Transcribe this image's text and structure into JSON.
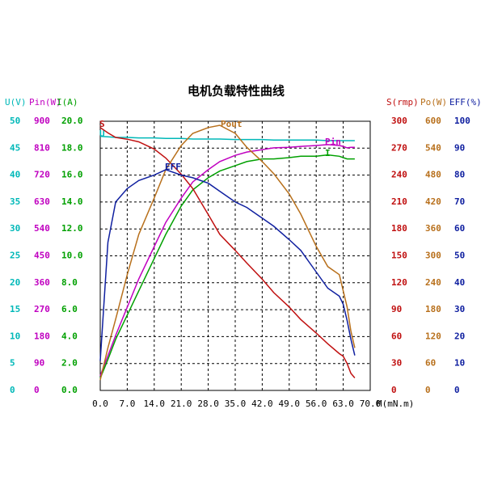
{
  "chart_data": {
    "type": "line",
    "title": "电机负载特性曲线",
    "xlabel": "M(mN.m)",
    "x": [
      0,
      2,
      4,
      7,
      10,
      14,
      17,
      21,
      24,
      28,
      31,
      35,
      38,
      42,
      45,
      49,
      52,
      56,
      59,
      62,
      63,
      64,
      65,
      66
    ],
    "xlim": [
      0,
      70
    ],
    "xticks": [
      {
        "value": 0,
        "label": "0.0"
      },
      {
        "value": 7,
        "label": "7.0"
      },
      {
        "value": 14,
        "label": "14.0"
      },
      {
        "value": 21,
        "label": "21.0"
      },
      {
        "value": 28,
        "label": "28.0"
      },
      {
        "value": 35,
        "label": "35.0"
      },
      {
        "value": 42,
        "label": "42.0"
      },
      {
        "value": 49,
        "label": "49.0"
      },
      {
        "value": 56,
        "label": "56.0"
      },
      {
        "value": 63,
        "label": "63.0"
      },
      {
        "value": 70,
        "label": "70.0"
      }
    ],
    "grid": true,
    "series": [
      {
        "name": "U",
        "axis_label": "U(V)",
        "side": "left",
        "color": "#00b8b8",
        "ylim": [
          0,
          50
        ],
        "yticks": [
          0,
          5,
          10,
          15,
          20,
          25,
          30,
          35,
          40,
          45,
          50
        ],
        "values": [
          47.2,
          47.1,
          47.0,
          47.0,
          46.9,
          46.9,
          46.8,
          46.8,
          46.7,
          46.7,
          46.7,
          46.6,
          46.6,
          46.6,
          46.5,
          46.5,
          46.5,
          46.5,
          46.4,
          46.4,
          46.4,
          46.4,
          46.4,
          46.4
        ]
      },
      {
        "name": "Pin",
        "axis_label": "Pin(W)",
        "side": "left",
        "color": "#c000c0",
        "ylim": [
          0,
          900
        ],
        "yticks": [
          0,
          90,
          180,
          270,
          360,
          450,
          540,
          630,
          720,
          810,
          900
        ],
        "values": [
          49,
          116,
          184,
          278,
          373,
          481,
          562,
          643,
          697,
          738,
          765,
          786,
          797,
          805,
          811,
          813,
          816,
          819,
          822,
          819,
          816,
          811,
          813,
          813
        ]
      },
      {
        "name": "I",
        "axis_label": "I(A)",
        "side": "left",
        "color": "#00a000",
        "ylim": [
          0,
          20
        ],
        "yticks": [
          {
            "value": 0,
            "label": "0.0"
          },
          {
            "value": 2,
            "label": "2.0"
          },
          {
            "value": 4,
            "label": "4.0"
          },
          {
            "value": 6,
            "label": "6.0"
          },
          {
            "value": 8,
            "label": "8.0"
          },
          {
            "value": 10,
            "label": "10.0"
          },
          {
            "value": 12,
            "label": "12.0"
          },
          {
            "value": 14,
            "label": "14.0"
          },
          {
            "value": 16,
            "label": "16.0"
          },
          {
            "value": 18,
            "label": "18.0"
          },
          {
            "value": 20,
            "label": "20.0"
          }
        ],
        "values": [
          0.9,
          2.3,
          3.8,
          5.6,
          7.4,
          9.8,
          11.6,
          13.7,
          14.9,
          15.8,
          16.3,
          16.7,
          17.0,
          17.2,
          17.2,
          17.3,
          17.4,
          17.4,
          17.5,
          17.4,
          17.3,
          17.2,
          17.2,
          17.2
        ]
      },
      {
        "name": "S",
        "axis_label": "S(rmp)",
        "side": "right",
        "color": "#c01010",
        "ylim": [
          0,
          300
        ],
        "yticks": [
          0,
          30,
          60,
          90,
          120,
          150,
          180,
          210,
          240,
          270,
          300
        ],
        "values": [
          293,
          287,
          282,
          280,
          277,
          269,
          259,
          241,
          225,
          196,
          174,
          156,
          142,
          124,
          109,
          93,
          79,
          64,
          52,
          41,
          38,
          30,
          19,
          14
        ]
      },
      {
        "name": "Pout",
        "axis_label": "Po(W)",
        "side": "right",
        "color": "#b8701c",
        "ylim": [
          0,
          600
        ],
        "yticks": [
          0,
          60,
          120,
          180,
          240,
          300,
          360,
          420,
          480,
          540,
          600
        ],
        "values": [
          23,
          95,
          159,
          258,
          348,
          429,
          492,
          546,
          573,
          586,
          591,
          573,
          542,
          510,
          483,
          438,
          393,
          321,
          276,
          258,
          222,
          186,
          132,
          95
        ]
      },
      {
        "name": "EFF",
        "axis_label": "EFF(%)",
        "side": "right",
        "color": "#1020a0",
        "ylim": [
          0,
          100
        ],
        "yticks": [
          0,
          10,
          20,
          30,
          40,
          50,
          60,
          70,
          80,
          90,
          100
        ],
        "values": [
          11,
          55,
          70,
          75,
          78,
          80,
          82,
          80,
          79,
          77,
          74,
          70,
          68,
          64,
          61,
          56,
          52,
          44,
          38,
          35,
          32,
          26,
          19,
          13
        ]
      }
    ]
  }
}
